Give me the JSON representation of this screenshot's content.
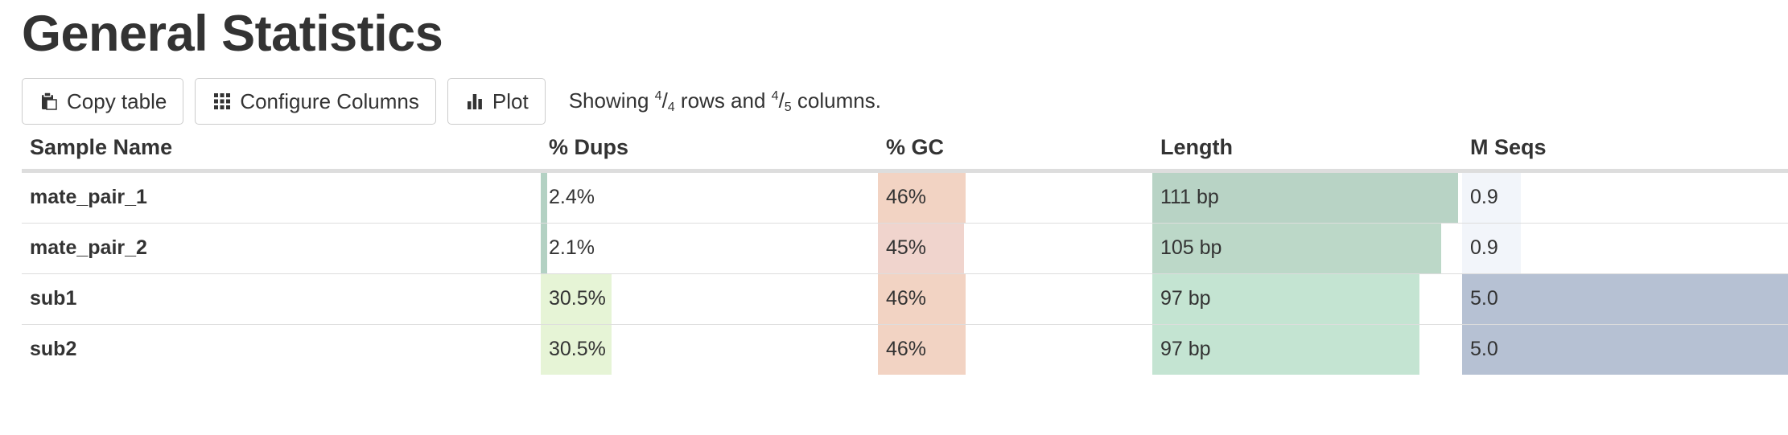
{
  "title": "General Statistics",
  "toolbar": {
    "copy_label": "Copy table",
    "configure_label": "Configure Columns",
    "plot_label": "Plot",
    "showing": {
      "prefix": "Showing ",
      "rows_shown": "4",
      "rows_total": "4",
      "middle": " rows and ",
      "cols_shown": "4",
      "cols_total": "5",
      "suffix": " columns."
    }
  },
  "icons": {
    "copy": "clipboard-icon",
    "configure": "grid-icon",
    "plot": "bar-chart-icon"
  },
  "columns": [
    {
      "key": "name",
      "label": "Sample Name"
    },
    {
      "key": "dups",
      "label": "% Dups",
      "max": 100
    },
    {
      "key": "gc",
      "label": "% GC",
      "max": 100
    },
    {
      "key": "length",
      "label": "Length",
      "max": 111
    },
    {
      "key": "mseqs",
      "label": "M Seqs",
      "max": 5.0
    }
  ],
  "rows": [
    {
      "name": "mate_pair_1",
      "dups": {
        "text": "2.4%",
        "value": 2.4,
        "color": "#b3d1c3"
      },
      "gc": {
        "text": "46%",
        "value": 46,
        "color": "#f2d3c3"
      },
      "length": {
        "text": "111 bp",
        "value": 111,
        "color": "#b8d3c5"
      },
      "mseqs": {
        "text": "0.9",
        "value": 0.9,
        "color": "#f2f5fa"
      }
    },
    {
      "name": "mate_pair_2",
      "dups": {
        "text": "2.1%",
        "value": 2.1,
        "color": "#b3d1c3"
      },
      "gc": {
        "text": "45%",
        "value": 45,
        "color": "#f0d4cd"
      },
      "length": {
        "text": "105 bp",
        "value": 105,
        "color": "#bcd8c8"
      },
      "mseqs": {
        "text": "0.9",
        "value": 0.9,
        "color": "#f2f5fa"
      }
    },
    {
      "name": "sub1",
      "dups": {
        "text": "30.5%",
        "value": 30.5,
        "color": "#e6f4d6"
      },
      "gc": {
        "text": "46%",
        "value": 46,
        "color": "#f2d3c3"
      },
      "length": {
        "text": "97 bp",
        "value": 97,
        "color": "#c4e4d2"
      },
      "mseqs": {
        "text": "5.0",
        "value": 5.0,
        "color": "#b6c1d3"
      }
    },
    {
      "name": "sub2",
      "dups": {
        "text": "30.5%",
        "value": 30.5,
        "color": "#e6f4d6"
      },
      "gc": {
        "text": "46%",
        "value": 46,
        "color": "#f2d3c3"
      },
      "length": {
        "text": "97 bp",
        "value": 97,
        "color": "#c4e4d2"
      },
      "mseqs": {
        "text": "5.0",
        "value": 5.0,
        "color": "#b6c1d3"
      }
    }
  ]
}
